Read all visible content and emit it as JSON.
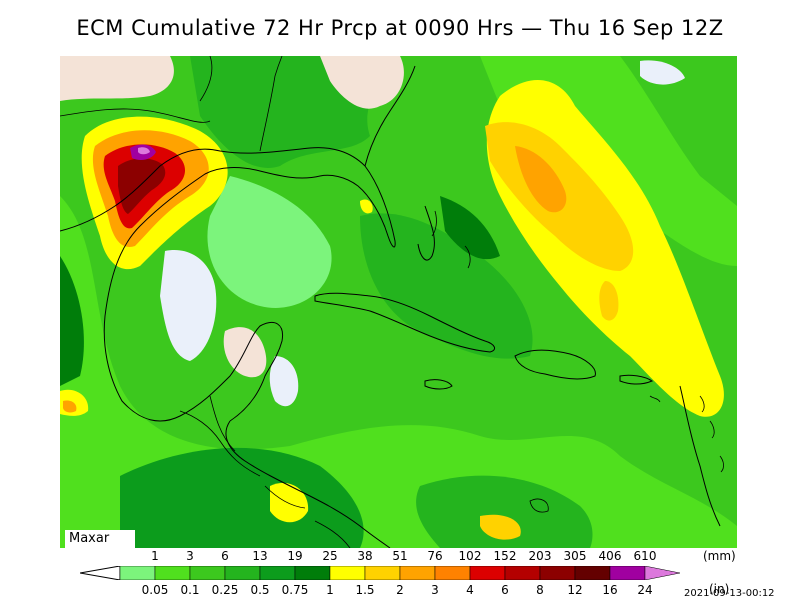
{
  "title": "ECM Cumulative 72 Hr Prcp at 0090 Hrs — Thu 16 Sep 12Z",
  "logo": "Maxar",
  "timestamp": "2021-09-13-00:12",
  "legend": {
    "mm_labels": [
      "1",
      "3",
      "6",
      "13",
      "19",
      "25",
      "38",
      "51",
      "76",
      "102",
      "152",
      "203",
      "305",
      "406",
      "610"
    ],
    "mm_unit": "(mm)",
    "in_labels": [
      "0.05",
      "0.1",
      "0.25",
      "0.5",
      "0.75",
      "1",
      "1.5",
      "2",
      "3",
      "4",
      "6",
      "8",
      "12",
      "16",
      "24"
    ],
    "in_unit": "(in)",
    "colors": [
      "#7cf47c",
      "#50e01e",
      "#3cc81e",
      "#24b41e",
      "#0c9c1c",
      "#007d0a",
      "#ffff00",
      "#ffd200",
      "#ffa300",
      "#ff8200",
      "#dc0000",
      "#b40000",
      "#8c0000",
      "#640000",
      "#a000a0",
      "#dc78dc"
    ]
  },
  "map": {
    "ocean_color": "#2dc12d",
    "land_dry_color": "#f4e3d7",
    "dry_pocket_color": "#eaf0fa",
    "border_color": "#000000"
  }
}
